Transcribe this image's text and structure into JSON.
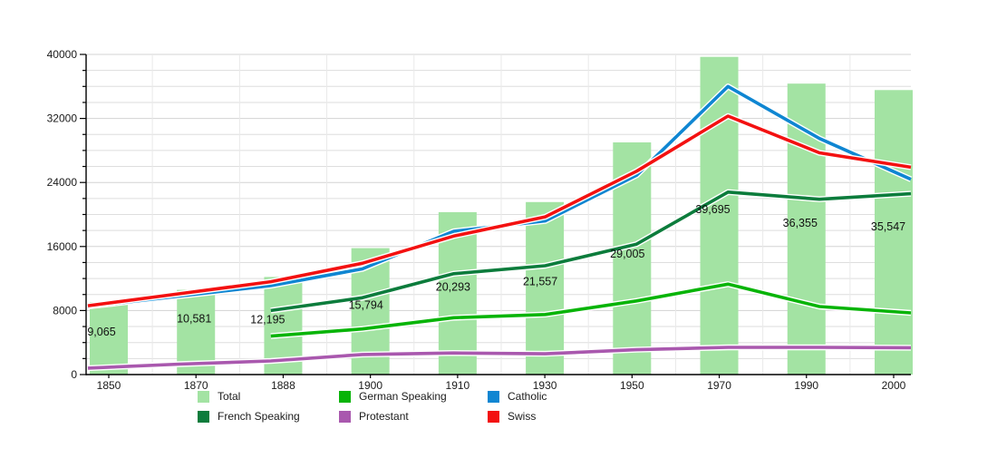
{
  "chart_data": {
    "type": "bar+line",
    "title": "",
    "categories": [
      "1850",
      "1870",
      "1888",
      "1900",
      "1910",
      "1930",
      "1950",
      "1970",
      "1990",
      "2000"
    ],
    "bar_series": {
      "name": "Total",
      "color": "#a3e3a3",
      "values": [
        9065,
        10581,
        12195,
        15794,
        20293,
        21557,
        29005,
        39695,
        36355,
        35547
      ],
      "labels": [
        "9,065",
        "10,581",
        "12,195",
        "15,794",
        "20,293",
        "21,557",
        "29,005",
        "39,695",
        "36,355",
        "35,547"
      ]
    },
    "line_series": [
      {
        "name": "Protestant",
        "color": "#a958ae",
        "values": [
          800,
          1300,
          1700,
          2500,
          2700,
          2600,
          3100,
          3400,
          3400,
          3350
        ]
      },
      {
        "name": "German Speaking",
        "color": "#08b408",
        "values": [
          null,
          null,
          4800,
          5700,
          7100,
          7500,
          9200,
          11300,
          8500,
          7700
        ]
      },
      {
        "name": "French Speaking",
        "color": "#0c7c3c",
        "values": [
          null,
          null,
          8000,
          9600,
          12600,
          13600,
          16300,
          22800,
          21900,
          22600
        ]
      },
      {
        "name": "Catholic",
        "color": "#0f86d2",
        "values": [
          8500,
          9800,
          11100,
          13200,
          17900,
          19200,
          24900,
          36000,
          29500,
          24400
        ]
      },
      {
        "name": "Swiss",
        "color": "#f31111",
        "values": [
          8600,
          10100,
          11600,
          13900,
          17300,
          19700,
          25400,
          32300,
          27700,
          25900
        ]
      }
    ],
    "y_axis": {
      "min": 0,
      "max": 40000,
      "major_step": 8000,
      "minor_step": 2000,
      "tick_labels": [
        "0",
        "8000",
        "16000",
        "24000",
        "32000",
        "40000"
      ]
    },
    "x_axis": {
      "tick_labels": [
        "1850",
        "1870",
        "1888",
        "1900",
        "1910",
        "1930",
        "1950",
        "1970",
        "1990",
        "2000"
      ]
    },
    "grid": true,
    "legend_position": "bottom",
    "legend": [
      {
        "label": "Total",
        "color": "#a3e3a3"
      },
      {
        "label": "German Speaking",
        "color": "#08b408"
      },
      {
        "label": "Catholic",
        "color": "#0f86d2"
      },
      {
        "label": "French Speaking",
        "color": "#0c7c3c"
      },
      {
        "label": "Protestant",
        "color": "#a958ae"
      },
      {
        "label": "Swiss",
        "color": "#f31111"
      }
    ],
    "colors": {
      "grid_minor": "#dedede",
      "grid_major": "#d3d3d3",
      "grid_vertical": "#e9e9e9",
      "axis": "#000000",
      "text": "#1a1a1a",
      "line_halo": "#ffffff"
    }
  }
}
